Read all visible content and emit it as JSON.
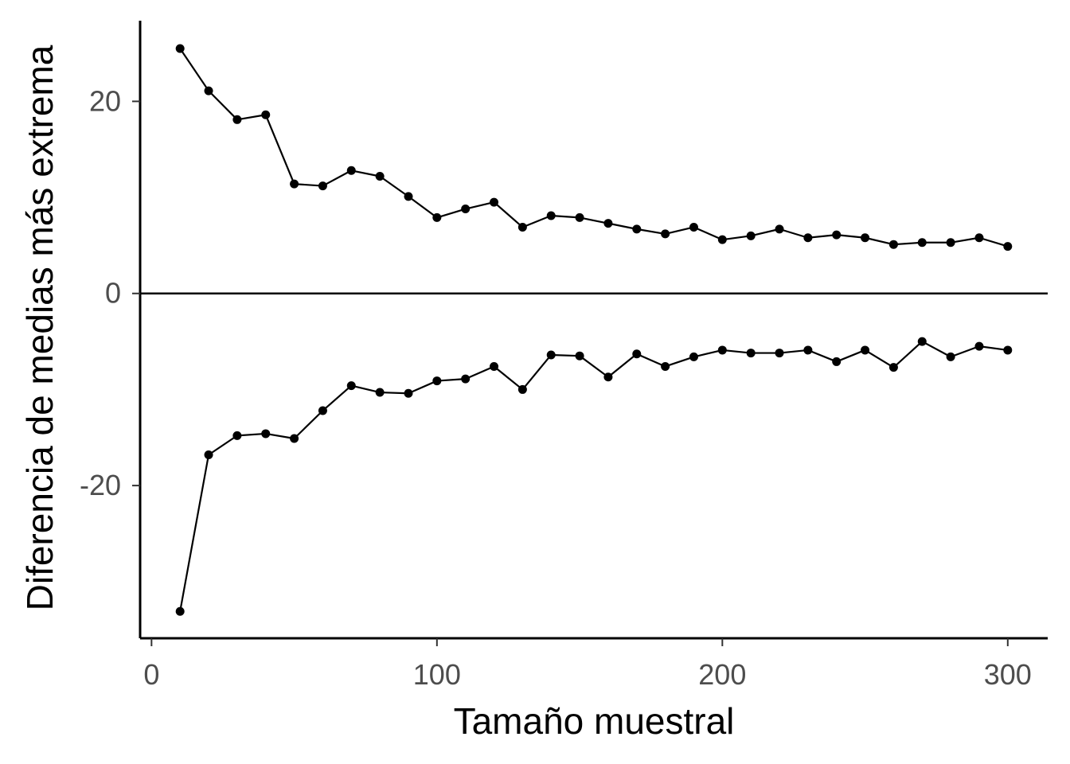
{
  "chart_data": {
    "type": "line",
    "title": "",
    "xlabel": "Tamaño muestral",
    "ylabel": "Diferencia de medias más extrema",
    "xlim": [
      -4,
      314
    ],
    "ylim": [
      -35.9,
      28.4
    ],
    "x_ticks": [
      0,
      100,
      200,
      300
    ],
    "x_tick_labels": [
      "0",
      "100",
      "200",
      "300"
    ],
    "y_ticks": [
      -20,
      0,
      20
    ],
    "y_tick_labels": [
      "-20",
      "0",
      "20"
    ],
    "reference_line_y": 0,
    "grid": false,
    "legend": "none",
    "x": [
      10,
      20,
      30,
      40,
      50,
      60,
      70,
      80,
      90,
      100,
      110,
      120,
      130,
      140,
      150,
      160,
      170,
      180,
      190,
      200,
      210,
      220,
      230,
      240,
      250,
      260,
      270,
      280,
      290,
      300
    ],
    "series": [
      {
        "values": [
          25.5,
          21.1,
          18.1,
          18.6,
          11.4,
          11.2,
          12.8,
          12.2,
          10.1,
          7.9,
          8.8,
          9.5,
          6.9,
          8.1,
          7.9,
          7.3,
          6.7,
          6.2,
          6.9,
          5.6,
          6.0,
          6.7,
          5.8,
          6.1,
          5.8,
          5.1,
          5.3,
          5.3,
          5.8,
          4.9
        ],
        "color": "#000000"
      },
      {
        "values": [
          -33.1,
          -16.8,
          -14.8,
          -14.6,
          -15.1,
          -12.2,
          -9.6,
          -10.3,
          -10.4,
          -9.1,
          -8.9,
          -7.6,
          -10.0,
          -6.4,
          -6.5,
          -8.7,
          -6.3,
          -7.6,
          -6.6,
          -5.9,
          -6.2,
          -6.2,
          -5.9,
          -7.1,
          -5.9,
          -7.7,
          -5.0,
          -6.6,
          -5.5,
          -5.9
        ],
        "color": "#000000"
      }
    ]
  }
}
